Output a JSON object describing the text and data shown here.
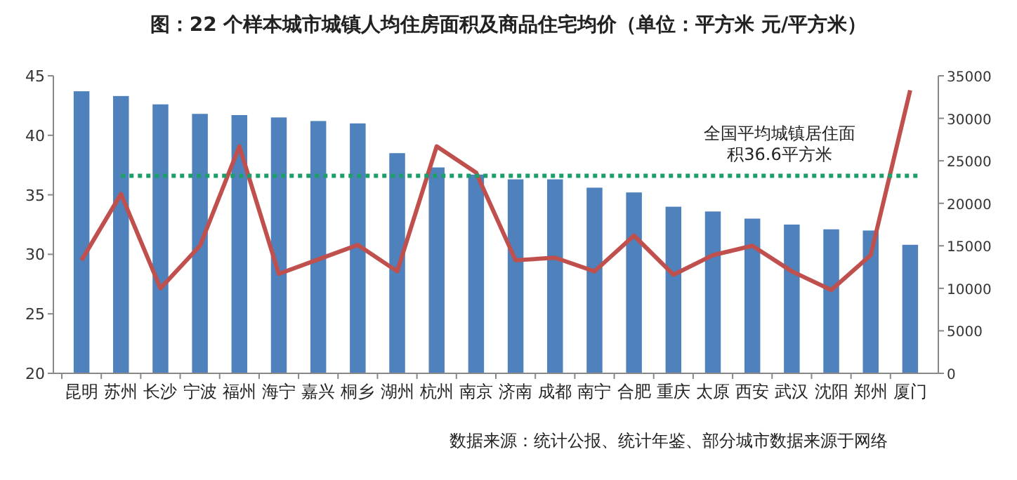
{
  "chart_data": {
    "type": "bar",
    "title": "图：22 个样本城市城镇人均住房面积及商品住宅均价（单位：平方米 元/平方米）",
    "categories": [
      "昆明",
      "苏州",
      "长沙",
      "宁波",
      "福州",
      "海宁",
      "嘉兴",
      "桐乡",
      "湖州",
      "杭州",
      "南京",
      "济南",
      "成都",
      "南宁",
      "合肥",
      "重庆",
      "太原",
      "西安",
      "武汉",
      "沈阳",
      "郑州",
      "厦门"
    ],
    "series": [
      {
        "color": "#4f81bd",
        "values": [
          43.7,
          43.3,
          42.6,
          41.8,
          41.7,
          41.5,
          41.2,
          41.0,
          38.5,
          37.3,
          36.7,
          36.3,
          36.3,
          35.6,
          35.2,
          34.0,
          33.6,
          33.0,
          32.5,
          32.1,
          32.0,
          30.8
        ]
      },
      {
        "type": "line",
        "axis": "y2",
        "color": "#c0504d",
        "values": [
          13300,
          21100,
          10000,
          15000,
          26700,
          11700,
          13400,
          15100,
          12000,
          26700,
          23600,
          13300,
          13600,
          12000,
          16200,
          11600,
          13900,
          15000,
          12000,
          9800,
          13900,
          33300
        ]
      }
    ],
    "ylim": [
      20,
      45
    ],
    "yticks": [
      20,
      25,
      30,
      35,
      40,
      45
    ],
    "y2lim": [
      0,
      35000
    ],
    "y2ticks": [
      0,
      5000,
      10000,
      15000,
      20000,
      25000,
      30000,
      35000
    ],
    "ref_lines": [
      {
        "axis": "y",
        "value": 36.6,
        "label": "全国平均城镇居住面积36.6平方米",
        "color": "#1e9e6a",
        "line_style": "dotted"
      }
    ],
    "annotations": [
      "数据来源：统计公报、统计年鉴、部分城市数据来源于网络"
    ],
    "grid": false,
    "marker": "none"
  }
}
